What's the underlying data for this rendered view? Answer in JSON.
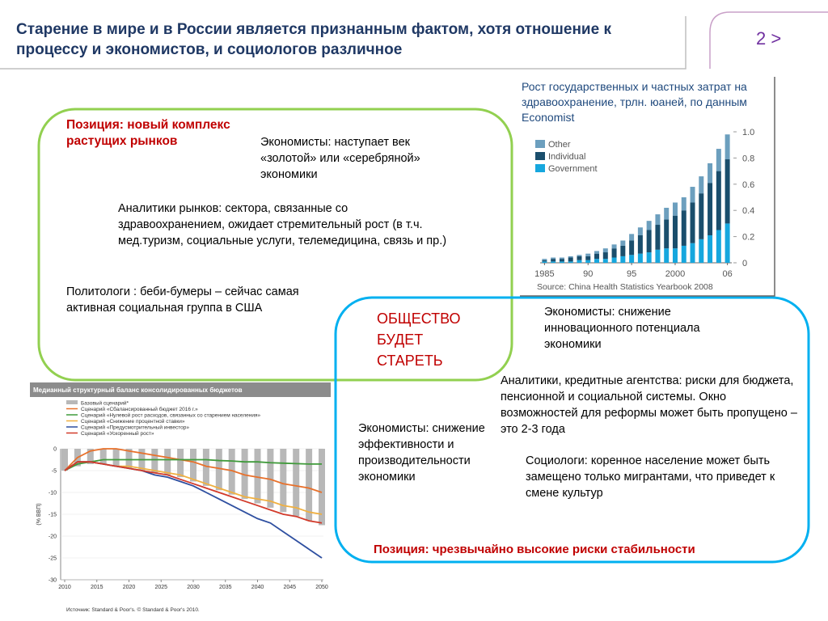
{
  "header": {
    "title": "Старение в мире и в России является признанным фактом, хотя отношение к процессу и экономистов, и социологов различное",
    "page": "2 >"
  },
  "left": {
    "position": "Позиция: новый комплекс растущих рынков",
    "economists": "Экономисты: наступает век «золотой» или «серебряной» экономики",
    "analysts": "Аналитики рынков: сектора, связанные со здравоохранением, ожидает стремительный рост (в т.ч. мед.туризм, социальные услуги, телемедицина, связь и пр.)",
    "politologists": "Политологи : беби-бумеры – сейчас самая активная социальная группа в США"
  },
  "right": {
    "headline": "ОБЩЕСТВО БУДЕТ СТАРЕТЬ",
    "economists_innovation": "Экономисты: снижение инновационного потенциала экономики",
    "analysts": "Аналитики, кредитные агентства: риски для бюджета, пенсионной и социальной системы. Окно возможностей для реформы может быть пропущено – это 2-3 года",
    "economists_efficiency": "Экономисты: снижение эффективности и производительности экономики",
    "sociologists": "Социологи: коренное население может быть замещено только мигрантами, что приведет к смене культур",
    "position": "Позиция: чрезвычайно высокие риски стабильности"
  },
  "chart_data": [
    {
      "type": "bar",
      "stacked": true,
      "title": "Рост государственных и частных затрат на здравоохранение,  трлн. юаней,  по данным Economist",
      "categories": [
        "1985",
        null,
        null,
        null,
        null,
        "90",
        null,
        null,
        null,
        null,
        "95",
        null,
        null,
        null,
        null,
        "2000",
        null,
        null,
        null,
        null,
        null,
        "06"
      ],
      "series": [
        {
          "name": "Other",
          "color": "#6c9fbe",
          "values": [
            0.01,
            0.01,
            0.01,
            0.01,
            0.01,
            0.02,
            0.02,
            0.03,
            0.03,
            0.04,
            0.05,
            0.06,
            0.07,
            0.08,
            0.09,
            0.1,
            0.1,
            0.12,
            0.13,
            0.15,
            0.17,
            0.19
          ]
        },
        {
          "name": "Individual",
          "color": "#1a4e6c",
          "values": [
            0.01,
            0.02,
            0.02,
            0.03,
            0.03,
            0.03,
            0.04,
            0.05,
            0.07,
            0.08,
            0.11,
            0.14,
            0.17,
            0.19,
            0.22,
            0.25,
            0.27,
            0.31,
            0.35,
            0.4,
            0.45,
            0.49
          ]
        },
        {
          "name": "Government",
          "color": "#16a7de",
          "values": [
            0.01,
            0.01,
            0.01,
            0.01,
            0.02,
            0.02,
            0.03,
            0.03,
            0.04,
            0.05,
            0.06,
            0.07,
            0.08,
            0.1,
            0.11,
            0.11,
            0.13,
            0.15,
            0.18,
            0.21,
            0.25,
            0.3
          ]
        }
      ],
      "ylim": [
        0,
        1.0
      ],
      "yticks": [
        0,
        0.2,
        0.4,
        0.6,
        0.8,
        {
          "value": 1,
          "label": "1.0"
        }
      ],
      "source": "Source: China Health Statistics Yearbook 2008"
    },
    {
      "type": "line",
      "title": "Медианный структурный баланс консолидированных бюджетов",
      "ylabel": "(% ВВП)",
      "x": [
        2010,
        2012,
        2014,
        2016,
        2018,
        2020,
        2022,
        2024,
        2026,
        2028,
        2030,
        2032,
        2034,
        2036,
        2038,
        2040,
        2042,
        2044,
        2046,
        2048,
        2050
      ],
      "series": [
        {
          "name": "Базовый сценарий*",
          "kind": "bar",
          "color": "#b8b8b8",
          "values": [
            -5,
            -4,
            -3.5,
            -3.5,
            -4,
            -4.5,
            -5,
            -5.5,
            -6,
            -6.5,
            -7.5,
            -8.5,
            -9.5,
            -10.5,
            -11.5,
            -12.5,
            -13.5,
            -14.5,
            -15.5,
            -16.5,
            -17.5
          ]
        },
        {
          "name": "Сценарий «Сбалансированный бюджет 2016 г.»",
          "color": "#e8702a",
          "values": [
            -5,
            -2,
            -0.5,
            0,
            0,
            -0.5,
            -1,
            -1.5,
            -2,
            -2.5,
            -3,
            -4,
            -4.5,
            -5,
            -6,
            -6.5,
            -7,
            -8,
            -8.5,
            -9,
            -10
          ]
        },
        {
          "name": "Сценарий «Нулевой рост расходов, связанных со старением населения»",
          "color": "#3f9a3a",
          "values": [
            -5,
            -3.5,
            -3,
            -2.5,
            -2.5,
            -2.5,
            -2.5,
            -2.5,
            -2.5,
            -2.5,
            -2.5,
            -2.5,
            -2.7,
            -2.8,
            -3,
            -3,
            -3.2,
            -3.3,
            -3.4,
            -3.5,
            -3.5
          ]
        },
        {
          "name": "Сценарий «Снижение процентной ставки»",
          "color": "#f0b040",
          "values": [
            -5,
            -3,
            -3,
            -3.5,
            -4,
            -4,
            -4.5,
            -5,
            -5.5,
            -6,
            -7,
            -8,
            -9,
            -10,
            -11,
            -11.5,
            -12,
            -13,
            -13.5,
            -14.5,
            -15
          ]
        },
        {
          "name": "Сценарий  «Предусмотрительный инвестор»",
          "color": "#2e4fa0",
          "values": [
            -5,
            -3,
            -3,
            -3.5,
            -4,
            -4.5,
            -5,
            -6,
            -6.5,
            -7.5,
            -8.5,
            -10,
            -11.5,
            -13,
            -14.5,
            -16,
            -17,
            -19,
            -21,
            -23,
            -25
          ]
        },
        {
          "name": "Сценарий «Ускоренный рост»",
          "color": "#d23a2a",
          "values": [
            -5,
            -3,
            -3,
            -3.5,
            -4,
            -4.5,
            -5,
            -5.5,
            -6,
            -7,
            -8,
            -9,
            -10,
            -11,
            -12,
            -13,
            -14,
            -15,
            -15.5,
            -16.5,
            -17
          ]
        }
      ],
      "xlim": [
        2010,
        2050
      ],
      "xticks": [
        2010,
        2015,
        2020,
        2025,
        2030,
        2035,
        2040,
        2045,
        2050
      ],
      "ylim": [
        -30,
        0
      ],
      "yticks": [
        0,
        -5,
        -10,
        -15,
        -20,
        -25,
        -30
      ],
      "source": "Источник: Standard & Poor's. © Standard & Poor's 2010."
    }
  ]
}
